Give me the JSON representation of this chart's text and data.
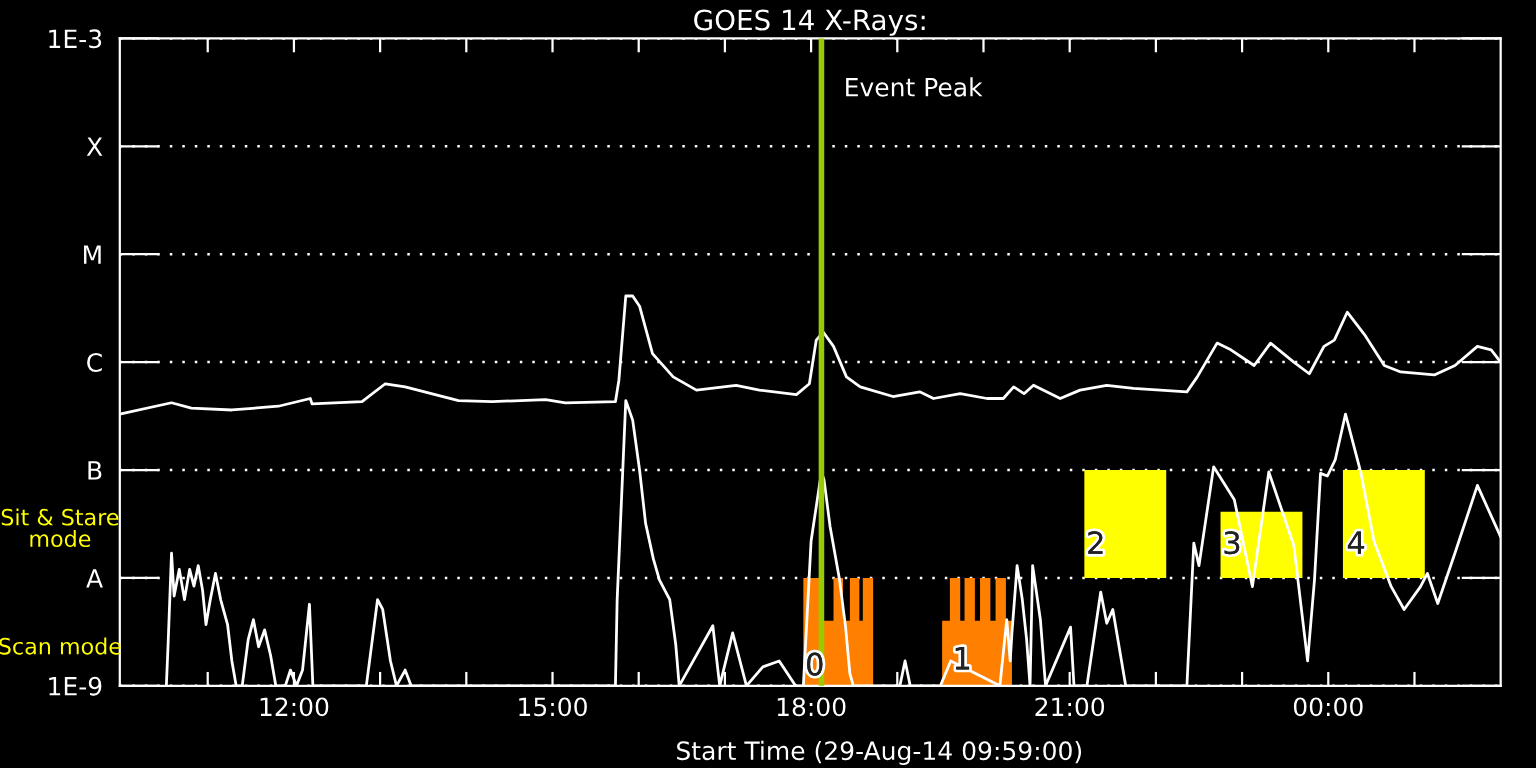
{
  "chart_data": {
    "type": "line",
    "title": "GOES 14 X-Rays:",
    "xlabel": "Start Time (29-Aug-14 09:59:00)",
    "xlim": [
      9.98,
      26.0
    ],
    "ylim": [
      1e-09,
      0.001
    ],
    "log": true,
    "grid": "y",
    "xticks": [
      {
        "value": 11,
        "label": null
      },
      {
        "value": 12,
        "label": "12:00"
      },
      {
        "value": 13,
        "label": null
      },
      {
        "value": 14,
        "label": null
      },
      {
        "value": 15,
        "label": "15:00"
      },
      {
        "value": 16,
        "label": null
      },
      {
        "value": 17,
        "label": null
      },
      {
        "value": 18,
        "label": "18:00"
      },
      {
        "value": 19,
        "label": null
      },
      {
        "value": 20,
        "label": null
      },
      {
        "value": 21,
        "label": "21:00"
      },
      {
        "value": 22,
        "label": null
      },
      {
        "value": 23,
        "label": null
      },
      {
        "value": 24,
        "label": "00:00"
      },
      {
        "value": 25,
        "label": null
      }
    ],
    "yticks": [
      {
        "value": 1e-09,
        "label": "1E-9"
      },
      {
        "value": 1e-08,
        "label": "A"
      },
      {
        "value": 1e-07,
        "label": "B"
      },
      {
        "value": 1e-06,
        "label": "C"
      },
      {
        "value": 1e-05,
        "label": "M"
      },
      {
        "value": 0.0001,
        "label": "X"
      },
      {
        "value": 0.001,
        "label": "1E-3"
      }
    ],
    "series": [
      {
        "type": "area",
        "color": "#ff8000",
        "x": [
          17.91,
          17.91,
          18.1,
          18.1,
          18.26,
          18.26,
          18.37,
          18.37,
          18.45,
          18.45,
          18.56,
          18.56,
          18.6,
          18.6,
          18.72,
          18.72
        ],
        "values": [
          1e-09,
          1e-08,
          1e-08,
          4e-09,
          4e-09,
          1e-08,
          1e-08,
          4e-09,
          4e-09,
          1e-08,
          1e-08,
          4e-09,
          4e-09,
          1e-08,
          1e-08,
          1e-09
        ]
      },
      {
        "type": "area",
        "color": "#ff8000",
        "x": [
          19.52,
          19.52,
          19.61,
          19.61,
          19.73,
          19.73,
          19.78,
          19.78,
          19.9,
          19.9,
          19.96,
          19.96,
          20.08,
          20.08,
          20.14,
          20.14,
          20.26,
          20.26,
          20.33,
          20.33
        ],
        "values": [
          1e-09,
          4e-09,
          4e-09,
          1e-08,
          1e-08,
          4e-09,
          4e-09,
          1e-08,
          1e-08,
          4e-09,
          4e-09,
          1e-08,
          1e-08,
          4e-09,
          4e-09,
          1e-08,
          1e-08,
          4e-09,
          4e-09,
          1e-09
        ]
      },
      {
        "type": "bar",
        "color": "#ffff00",
        "x": [
          21.645,
          23.225,
          24.645
        ],
        "base": [
          1e-08,
          1e-08,
          1e-08
        ],
        "values": [
          9e-08,
          3.1e-08,
          9e-08
        ]
      },
      {
        "color": "#ffffff",
        "x": [
          9.98,
          10.58,
          10.81,
          11.28,
          11.82,
          12.19,
          12.21,
          12.79,
          13.06,
          13.29,
          13.91,
          14.3,
          14.92,
          15.15,
          15.73,
          15.77,
          15.85,
          15.93,
          16.01,
          16.16,
          16.4,
          16.67,
          17.13,
          17.4,
          17.83,
          17.98,
          18.06,
          18.14,
          18.26,
          18.41,
          18.57,
          18.95,
          19.26,
          19.42,
          19.73,
          20.04,
          20.23,
          20.35,
          20.47,
          20.58,
          20.89,
          21.12,
          21.43,
          21.74,
          22.36,
          22.48,
          22.71,
          22.87,
          23.14,
          23.33,
          23.6,
          23.78,
          23.95,
          24.07,
          24.22,
          24.42,
          24.65,
          24.84,
          25.23,
          25.47,
          25.73,
          25.89,
          26.0
        ],
        "values": [
          3.3e-07,
          4.2e-07,
          3.75e-07,
          3.6e-07,
          3.9e-07,
          4.6e-07,
          4.1e-07,
          4.3e-07,
          6.3e-07,
          5.9e-07,
          4.4e-07,
          4.3e-07,
          4.5e-07,
          4.2e-07,
          4.3e-07,
          6.8e-07,
          4.1e-06,
          4.1e-06,
          3.3e-06,
          1.2e-06,
          7.3e-07,
          5.5e-07,
          6.1e-07,
          5.5e-07,
          5e-07,
          6.3e-07,
          1.6e-06,
          1.9e-06,
          1.4e-06,
          7.3e-07,
          5.9e-07,
          4.8e-07,
          5.3e-07,
          4.6e-07,
          5.1e-07,
          4.6e-07,
          4.6e-07,
          5.9e-07,
          5.1e-07,
          6.1e-07,
          4.6e-07,
          5.5e-07,
          6.1e-07,
          5.7e-07,
          5.3e-07,
          7.3e-07,
          1.5e-06,
          1.3e-06,
          9.3e-07,
          1.5e-06,
          1e-06,
          7.8e-07,
          1.4e-06,
          1.6e-06,
          2.9e-06,
          1.8e-06,
          9.3e-07,
          8.1e-07,
          7.6e-07,
          9.3e-07,
          1.4e-06,
          1.3e-06,
          1e-06
        ]
      },
      {
        "color": "#ffffff",
        "x": [
          10.52,
          10.54,
          10.58,
          10.61,
          10.67,
          10.73,
          10.79,
          10.84,
          10.89,
          10.94,
          10.98,
          11.03,
          11.09,
          11.15,
          11.23,
          11.28,
          11.33,
          11.4,
          11.47,
          11.53,
          11.59,
          11.66,
          11.73,
          11.79,
          11.9,
          11.96,
          12.03,
          12.1,
          12.18,
          12.22,
          12.63,
          12.84,
          12.97,
          13.03,
          13.12,
          13.19,
          13.29,
          13.36,
          15.73,
          15.75,
          15.85,
          15.93,
          16.01,
          16.08,
          16.17,
          16.24,
          16.36,
          16.43,
          16.47,
          16.86,
          16.94,
          17.09,
          17.25,
          17.44,
          17.63,
          17.82,
          17.91,
          18.0,
          18.12,
          18.15,
          18.22,
          18.33,
          18.4,
          18.45,
          18.49,
          19.03,
          19.09,
          19.15,
          19.5,
          19.62,
          20.19,
          20.27,
          20.31,
          20.33,
          20.39,
          20.45,
          20.5,
          20.54,
          20.57,
          20.66,
          20.72,
          21.01,
          21.05,
          21.2,
          21.36,
          21.43,
          21.5,
          21.65,
          22.36,
          22.44,
          22.5,
          22.67,
          22.91,
          23.12,
          23.31,
          23.6,
          23.76,
          23.84,
          23.91,
          23.99,
          24.08,
          24.2,
          24.38,
          24.53,
          24.73,
          24.88,
          25.07,
          25.15,
          25.27,
          25.47,
          25.73,
          26.0
        ],
        "values": [
          1e-09,
          2.4e-09,
          1.7e-08,
          6.8e-09,
          1.2e-08,
          6.3e-09,
          1.2e-08,
          8.4e-09,
          1.3e-08,
          7.7e-09,
          3.7e-09,
          6.3e-09,
          1.1e-08,
          6.3e-09,
          3.7e-09,
          1.7e-09,
          1e-09,
          1e-09,
          2.7e-09,
          4.1e-09,
          2.3e-09,
          3.3e-09,
          1.9e-09,
          1e-09,
          1e-09,
          1.4e-09,
          1e-09,
          1.4e-09,
          5.7e-09,
          1e-09,
          1e-09,
          1e-09,
          6.3e-09,
          5.1e-09,
          1.7e-09,
          1e-09,
          1.4e-09,
          1e-09,
          1e-09,
          6.3e-09,
          4.4e-07,
          2.9e-07,
          1e-07,
          3.2e-08,
          1.5e-08,
          9.6e-09,
          6.3e-09,
          2.4e-09,
          1e-09,
          3.6e-09,
          1e-09,
          3.1e-09,
          1e-09,
          1.5e-09,
          1.7e-09,
          1e-09,
          1e-09,
          2.2e-08,
          9.6e-08,
          8.1e-08,
          3e-08,
          9.6e-09,
          3.5e-09,
          1.3e-09,
          1e-09,
          1e-09,
          1.7e-09,
          1e-09,
          1e-09,
          1.7e-09,
          1e-09,
          4.1e-09,
          1.7e-09,
          3.1e-09,
          1.3e-08,
          6.3e-09,
          2.7e-09,
          1e-09,
          1.3e-08,
          4.1e-09,
          1e-09,
          3.5e-09,
          1e-09,
          1e-09,
          7.4e-09,
          3.8e-09,
          5.1e-09,
          1e-09,
          1e-09,
          2.1e-08,
          1.3e-08,
          1.07e-07,
          5.3e-08,
          8.3e-09,
          9.6e-08,
          2e-08,
          1.7e-09,
          9.6e-09,
          9.3e-08,
          8.8e-08,
          1.24e-07,
          3.3e-07,
          9.3e-08,
          2.2e-08,
          8.3e-09,
          5.1e-09,
          8.3e-09,
          1.1e-08,
          5.8e-09,
          1.7e-08,
          7.2e-08,
          2.4e-08
        ]
      }
    ],
    "ref_lines": [
      {
        "axis": "x",
        "value": 18.12,
        "label": "Event Peak",
        "color": "#99cc00"
      }
    ],
    "annotations": [
      "Sit & Stare\nmode",
      "Scan mode",
      {
        "text": "0",
        "x": 17.93,
        "y": 1.5e-09
      },
      {
        "text": "1",
        "x": 19.64,
        "y": 1.7e-09
      },
      {
        "text": "2",
        "x": 21.19,
        "y": 2e-08
      },
      {
        "text": "3",
        "x": 22.77,
        "y": 2e-08
      },
      {
        "text": "4",
        "x": 24.21,
        "y": 2e-08
      }
    ]
  }
}
